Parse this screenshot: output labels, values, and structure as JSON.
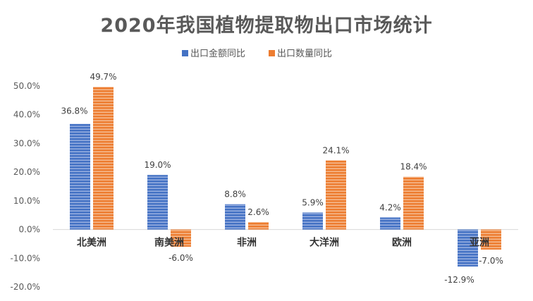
{
  "chart_data": {
    "type": "bar",
    "title": "2020年我国植物提取物出口市场统计",
    "categories": [
      "北美洲",
      "南美洲",
      "非洲",
      "大洋洲",
      "欧洲",
      "亚洲"
    ],
    "series": [
      {
        "name": "出口金额同比",
        "values": [
          36.8,
          19.0,
          8.8,
          5.9,
          4.2,
          -12.9
        ],
        "color": "#4472C4",
        "labels": [
          "36.8%",
          "19.0%",
          "8.8%",
          "5.9%",
          "4.2%",
          "-12.9%"
        ]
      },
      {
        "name": "出口数量同比",
        "values": [
          49.7,
          -6.0,
          2.6,
          24.1,
          18.4,
          -7.0
        ],
        "color": "#ED7D31",
        "labels": [
          "49.7%",
          "-6.0%",
          "2.6%",
          "24.1%",
          "18.4%",
          "-7.0%"
        ]
      }
    ],
    "ylim": [
      -20,
      50
    ],
    "yticks": [
      "-20.0%",
      "-10.0%",
      "0.0%",
      "10.0%",
      "20.0%",
      "30.0%",
      "40.0%",
      "50.0%"
    ],
    "legend_position": "top-center",
    "grid": false
  }
}
